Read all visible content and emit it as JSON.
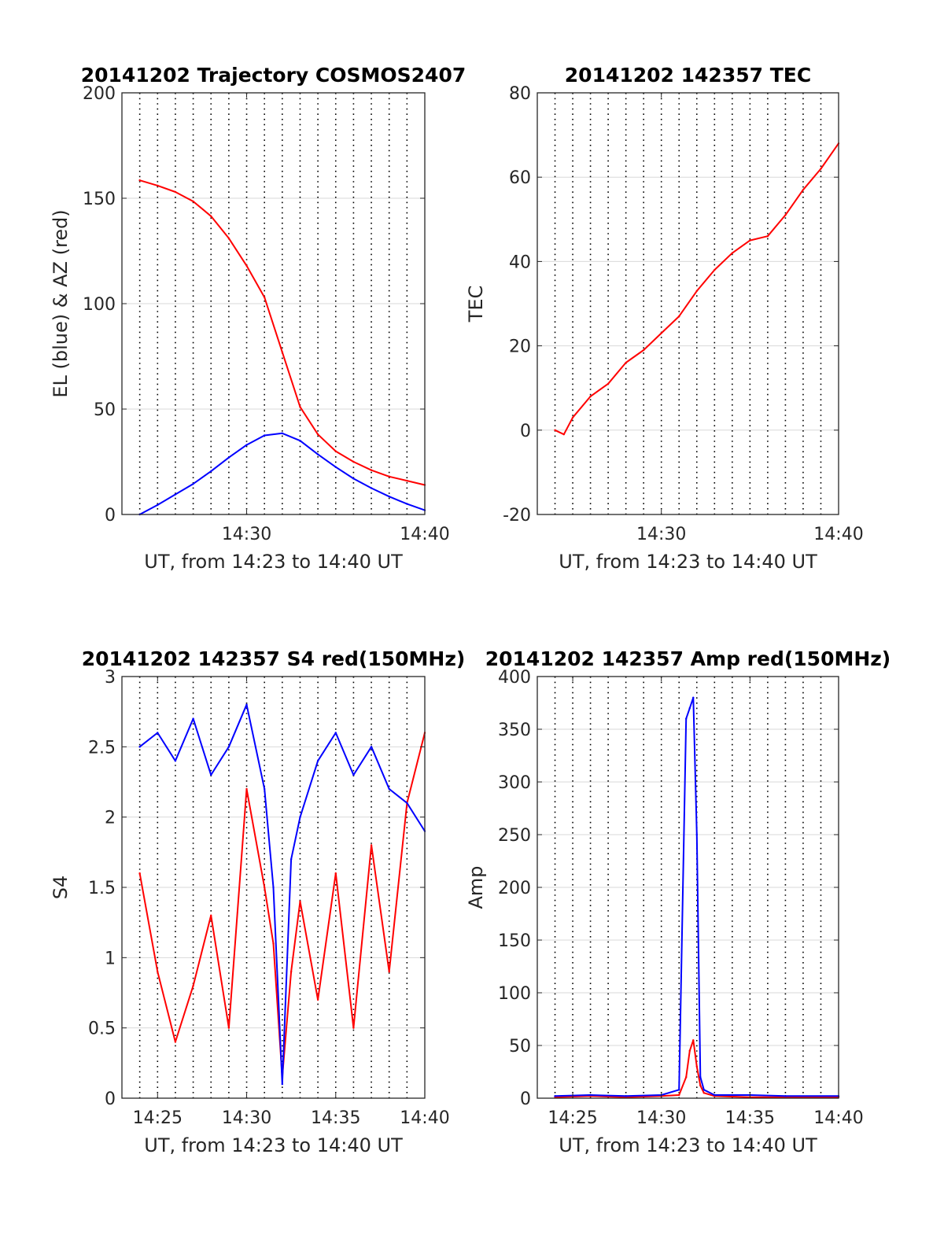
{
  "colors": {
    "el": "#0000ff",
    "az": "#ff0000",
    "tec": "#ff0000",
    "s4_red": "#ff0000",
    "s4_blue": "#0000ff",
    "amp_red": "#ff0000",
    "amp_blue": "#0000ff",
    "grid": "#d9d9d9",
    "axis": "#262626",
    "minute_lines": "#000000"
  },
  "chart_data": [
    {
      "id": "traj",
      "type": "line",
      "title": "20141202 Trajectory COSMOS2407",
      "xlabel": "UT, from 14:23 to 14:40 UT",
      "ylabel": "EL (blue) & AZ (red)",
      "xlim": [
        "14:23",
        "14:40"
      ],
      "ylim": [
        0,
        200
      ],
      "x_ticks": [
        "14:30",
        "14:40"
      ],
      "y_ticks": [
        0,
        50,
        100,
        150,
        200
      ],
      "grid": "horizontal lines plus dotted vertical line every minute",
      "x": [
        "14:24",
        "14:25",
        "14:26",
        "14:27",
        "14:28",
        "14:29",
        "14:30",
        "14:31",
        "14:32",
        "14:33",
        "14:34",
        "14:35",
        "14:36",
        "14:37",
        "14:38",
        "14:39",
        "14:40"
      ],
      "series": [
        {
          "key": "el",
          "values": [
            0,
            4.5,
            9.5,
            14.5,
            20.5,
            27,
            33,
            37.5,
            38.5,
            35,
            28.5,
            22.5,
            17,
            12.5,
            8.5,
            5,
            2
          ]
        },
        {
          "key": "az",
          "values": [
            158.5,
            156,
            153,
            148.5,
            141.5,
            131,
            118,
            103,
            77,
            51,
            38,
            30,
            25,
            21,
            18,
            16,
            14
          ]
        }
      ]
    },
    {
      "id": "tec",
      "type": "line",
      "title": "20141202 142357 TEC",
      "xlabel": "UT, from 14:23 to 14:40 UT",
      "ylabel": "TEC",
      "xlim": [
        "14:23",
        "14:40"
      ],
      "ylim": [
        -20,
        80
      ],
      "x_ticks": [
        "14:30",
        "14:40"
      ],
      "y_ticks": [
        -20,
        0,
        20,
        40,
        60,
        80
      ],
      "grid": "horizontal lines plus dotted vertical line every minute",
      "x": [
        "14:24",
        "14:24:30",
        "14:25",
        "14:26",
        "14:27",
        "14:28",
        "14:29",
        "14:30",
        "14:31",
        "14:32",
        "14:33",
        "14:34",
        "14:35",
        "14:36",
        "14:37",
        "14:38",
        "14:39",
        "14:40"
      ],
      "series": [
        {
          "key": "tec",
          "values": [
            0,
            -1,
            3,
            8,
            11,
            16,
            19,
            23,
            27,
            33,
            38,
            42,
            45,
            46,
            51,
            57,
            62,
            68
          ]
        }
      ]
    },
    {
      "id": "s4",
      "type": "line",
      "title": "20141202 142357 S4 red(150MHz)",
      "xlabel": "UT, from 14:23 to 14:40 UT",
      "ylabel": "S4",
      "xlim": [
        "14:23",
        "14:40"
      ],
      "ylim": [
        0,
        3
      ],
      "x_ticks": [
        "14:25",
        "14:30",
        "14:35",
        "14:40"
      ],
      "y_ticks": [
        0,
        0.5,
        1,
        1.5,
        2,
        2.5,
        3
      ],
      "grid": "horizontal lines plus dotted vertical line every minute",
      "x": [
        "14:24",
        "14:25",
        "14:26",
        "14:27",
        "14:28",
        "14:29",
        "14:30",
        "14:31",
        "14:31:30",
        "14:32",
        "14:32:30",
        "14:33",
        "14:34",
        "14:35",
        "14:36",
        "14:37",
        "14:38",
        "14:39",
        "14:40"
      ],
      "series": [
        {
          "key": "s4_red",
          "values": [
            1.6,
            0.9,
            0.4,
            0.8,
            1.3,
            0.5,
            2.2,
            1.5,
            1.1,
            0.15,
            0.9,
            1.4,
            0.7,
            1.6,
            0.5,
            1.8,
            0.9,
            2.1,
            2.6
          ]
        },
        {
          "key": "s4_blue",
          "values": [
            2.5,
            2.6,
            2.4,
            2.7,
            2.3,
            2.5,
            2.8,
            2.2,
            1.5,
            0.1,
            1.7,
            2.0,
            2.4,
            2.6,
            2.3,
            2.5,
            2.2,
            2.1,
            1.9
          ]
        }
      ]
    },
    {
      "id": "amp",
      "type": "line",
      "title": "20141202 142357 Amp red(150MHz)",
      "xlabel": "UT, from 14:23 to 14:40 UT",
      "ylabel": "Amp",
      "xlim": [
        "14:23",
        "14:40"
      ],
      "ylim": [
        0,
        400
      ],
      "x_ticks": [
        "14:25",
        "14:30",
        "14:35",
        "14:40"
      ],
      "y_ticks": [
        0,
        50,
        100,
        150,
        200,
        250,
        300,
        350,
        400
      ],
      "grid": "horizontal lines plus dotted vertical line every minute",
      "x": [
        "14:24",
        "14:26",
        "14:28",
        "14:30",
        "14:31",
        "14:31:24",
        "14:31:36",
        "14:31:48",
        "14:32",
        "14:32:12",
        "14:32:24",
        "14:33",
        "14:35",
        "14:37",
        "14:40"
      ],
      "series": [
        {
          "key": "amp_red",
          "values": [
            1,
            2,
            1,
            2,
            3,
            20,
            45,
            55,
            30,
            12,
            5,
            2,
            1,
            1,
            1
          ]
        },
        {
          "key": "amp_blue",
          "values": [
            2,
            3,
            2,
            3,
            8,
            360,
            370,
            380,
            250,
            20,
            8,
            3,
            3,
            2,
            2
          ]
        }
      ]
    }
  ]
}
